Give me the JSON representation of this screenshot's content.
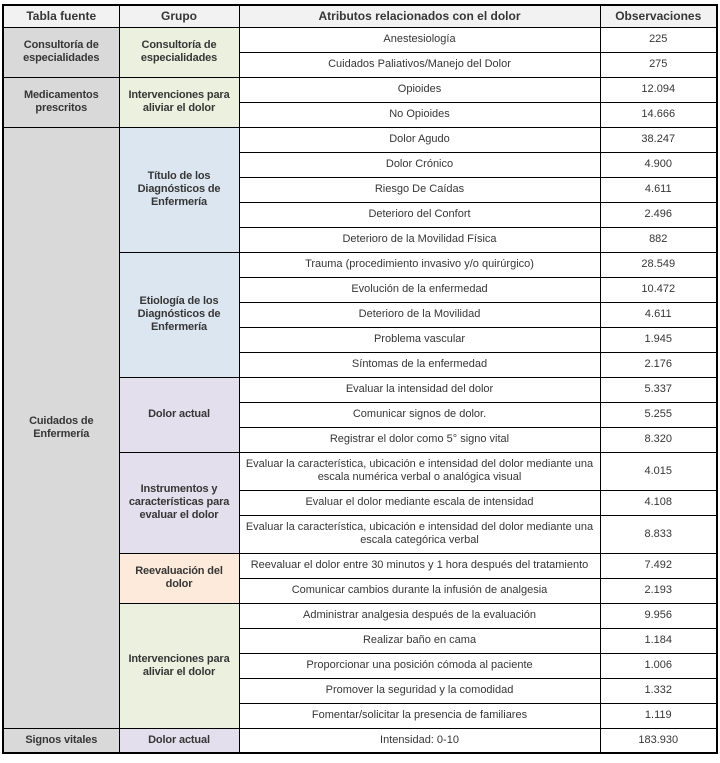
{
  "table": {
    "columns": [
      "Tabla fuente",
      "Grupo",
      "Atributos relacionados con el dolor",
      "Observaciones"
    ]
  },
  "colors": {
    "header_bg": "#f2f2f2",
    "source_bg": "#d9d9d9",
    "green": "#ebf1de",
    "blue": "#dce6f1",
    "purple": "#e4dfec",
    "orange": "#fdeada",
    "border": "#000000",
    "text": "#363636"
  },
  "sources": [
    {
      "label": "Consultoría de especialidades",
      "start": 0,
      "rowspan": 2
    },
    {
      "label": "Medicamentos prescritos",
      "start": 2,
      "rowspan": 2
    },
    {
      "label": "Cuidados de Enfermería",
      "start": 4,
      "rowspan": 23
    },
    {
      "label": "Signos vitales",
      "start": 27,
      "rowspan": 1
    }
  ],
  "groups": [
    {
      "label": "Consultoría de especialidades",
      "start": 0,
      "rowspan": 2,
      "color": "green"
    },
    {
      "label": "Intervenciones para aliviar el dolor",
      "start": 2,
      "rowspan": 2,
      "color": "green"
    },
    {
      "label": "Título de los Diagnósticos de Enfermería",
      "start": 4,
      "rowspan": 5,
      "color": "blue"
    },
    {
      "label": "Etiología de los Diagnósticos de Enfermería",
      "start": 9,
      "rowspan": 5,
      "color": "blue"
    },
    {
      "label": "Dolor actual",
      "start": 14,
      "rowspan": 3,
      "color": "purple"
    },
    {
      "label": "Instrumentos y características para evaluar el dolor",
      "start": 17,
      "rowspan": 3,
      "color": "purple"
    },
    {
      "label": "Reevaluación del dolor",
      "start": 20,
      "rowspan": 2,
      "color": "orange"
    },
    {
      "label": "Intervenciones para aliviar el dolor",
      "start": 22,
      "rowspan": 5,
      "color": "green"
    },
    {
      "label": "Dolor actual",
      "start": 27,
      "rowspan": 1,
      "color": "purple"
    }
  ],
  "rows": [
    {
      "attribute": "Anestesiología",
      "observations": "225"
    },
    {
      "attribute": "Cuidados Paliativos/Manejo del Dolor",
      "observations": "275"
    },
    {
      "attribute": "Opioides",
      "observations": "12.094"
    },
    {
      "attribute": "No Opioides",
      "observations": "14.666"
    },
    {
      "attribute": "Dolor Agudo",
      "observations": "38.247"
    },
    {
      "attribute": "Dolor Crónico",
      "observations": "4.900"
    },
    {
      "attribute": "Riesgo De Caídas",
      "observations": "4.611"
    },
    {
      "attribute": "Deterioro del Confort",
      "observations": "2.496"
    },
    {
      "attribute": "Deterioro de la Movilidad Física",
      "observations": "882"
    },
    {
      "attribute": "Trauma (procedimiento invasivo y/o quirúrgico)",
      "observations": "28.549"
    },
    {
      "attribute": "Evolución de la enfermedad",
      "observations": "10.472"
    },
    {
      "attribute": "Deterioro de la Movilidad",
      "observations": "4.611"
    },
    {
      "attribute": "Problema vascular",
      "observations": "1.945"
    },
    {
      "attribute": "Síntomas de la enfermedad",
      "observations": "2.176"
    },
    {
      "attribute": "Evaluar la intensidad del dolor",
      "observations": "5.337"
    },
    {
      "attribute": "Comunicar signos de dolor.",
      "observations": "5.255"
    },
    {
      "attribute": "Registrar el dolor como 5° signo vital",
      "observations": "8.320"
    },
    {
      "attribute": "Evaluar la característica, ubicación e intensidad del dolor mediante una escala numérica verbal o analógica visual",
      "observations": "4.015",
      "tall": true
    },
    {
      "attribute": "Evaluar el dolor mediante escala de intensidad",
      "observations": "4.108"
    },
    {
      "attribute": "Evaluar la característica, ubicación e intensidad del dolor mediante una escala categórica verbal",
      "observations": "8.833",
      "tall": true
    },
    {
      "attribute": "Reevaluar el dolor entre 30 minutos y 1 hora después del tratamiento",
      "observations": "7.492"
    },
    {
      "attribute": "Comunicar cambios durante la infusión de analgesia",
      "observations": "2.193"
    },
    {
      "attribute": "Administrar analgesia después de la evaluación",
      "observations": "9.956"
    },
    {
      "attribute": "Realizar baño en cama",
      "observations": "1.184"
    },
    {
      "attribute": "Proporcionar una posición cómoda al paciente",
      "observations": "1.006"
    },
    {
      "attribute": "Promover la seguridad y la comodidad",
      "observations": "1.332"
    },
    {
      "attribute": "Fomentar/solicitar la presencia de familiares",
      "observations": "1.119"
    },
    {
      "attribute": "Intensidad: 0-10",
      "observations": "183.930"
    }
  ]
}
